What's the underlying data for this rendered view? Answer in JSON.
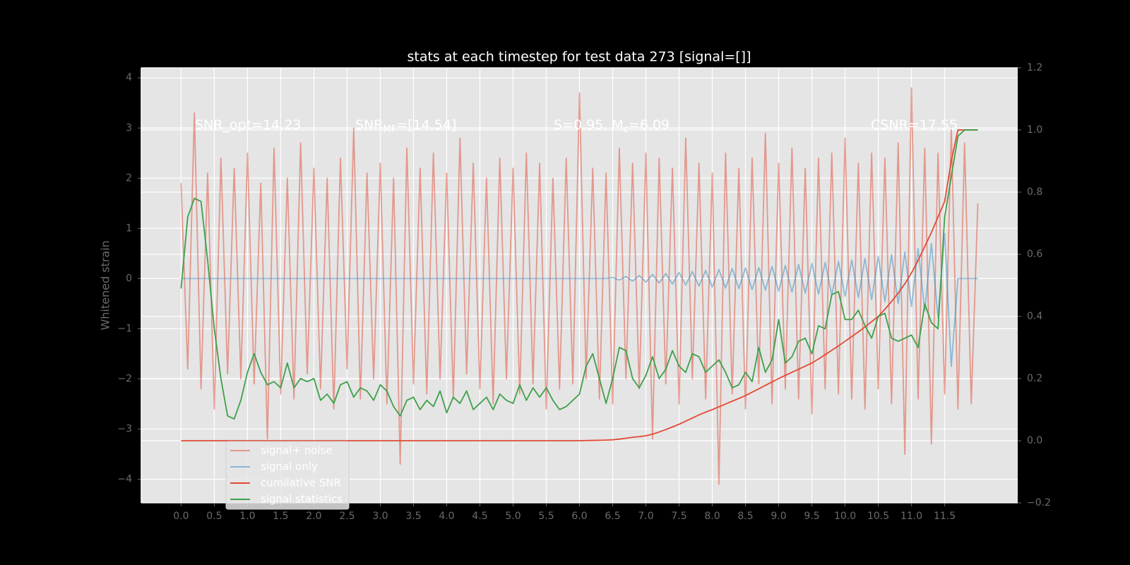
{
  "chart_data": {
    "type": "line",
    "title": "stats at each timestep for test data 273 [signal=[]]",
    "ylabel": "Whitened strain",
    "grid": true,
    "legend": "lower left",
    "annotations": [
      [
        "SNR_opt=14.23"
      ],
      [
        "SNR",
        "MF",
        "=[14.54]"
      ],
      [
        "S=0.95,  M",
        "c",
        "=6.09"
      ],
      [
        "CSNR=17.55"
      ]
    ],
    "xlim": [
      -0.6,
      12.6
    ],
    "ylim": [
      -4.47,
      4.2
    ],
    "y2lim": [
      -0.2,
      1.2
    ],
    "xticks": [
      {
        "value": 0,
        "label": "0.0"
      },
      0.5,
      {
        "value": 1,
        "label": "1.0"
      },
      1.5,
      {
        "value": 2,
        "label": "2.0"
      },
      2.5,
      {
        "value": 3,
        "label": "3.0"
      },
      3.5,
      {
        "value": 4,
        "label": "4.0"
      },
      4.5,
      {
        "value": 5,
        "label": "5.0"
      },
      5.5,
      {
        "value": 6,
        "label": "6.0"
      },
      6.5,
      {
        "value": 7,
        "label": "7.0"
      },
      7.5,
      {
        "value": 8,
        "label": "8.0"
      },
      8.5,
      {
        "value": 9,
        "label": "9.0"
      },
      9.5,
      {
        "value": 10,
        "label": "10.0"
      },
      10.5,
      {
        "value": 11,
        "label": "11.0"
      },
      11.5
    ],
    "yticks": [
      {
        "value": -4,
        "label": "−4"
      },
      {
        "value": -3,
        "label": "−3"
      },
      {
        "value": -2,
        "label": "−2"
      },
      {
        "value": -1,
        "label": "−1"
      },
      0,
      1,
      2,
      3,
      4
    ],
    "y2ticks": [
      {
        "value": -0.2,
        "label": "−0.2"
      },
      {
        "value": 0,
        "label": "0.0"
      },
      0.2,
      0.4,
      0.6,
      0.8,
      {
        "value": 1,
        "label": "1.0"
      },
      1.2
    ],
    "x": [
      0.0,
      0.1,
      0.2,
      0.3,
      0.4,
      0.5,
      0.6,
      0.7,
      0.8,
      0.9,
      1.0,
      1.1,
      1.2,
      1.3,
      1.4,
      1.5,
      1.6,
      1.7,
      1.8,
      1.9,
      2.0,
      2.1,
      2.2,
      2.3,
      2.4,
      2.5,
      2.6,
      2.7,
      2.8,
      2.9,
      3.0,
      3.1,
      3.2,
      3.3,
      3.4,
      3.5,
      3.6,
      3.7,
      3.8,
      3.9,
      4.0,
      4.1,
      4.2,
      4.3,
      4.4,
      4.5,
      4.6,
      4.7,
      4.8,
      4.9,
      5.0,
      5.1,
      5.2,
      5.3,
      5.4,
      5.5,
      5.6,
      5.7,
      5.8,
      5.9,
      6.0,
      6.1,
      6.2,
      6.3,
      6.4,
      6.5,
      6.6,
      6.7,
      6.8,
      6.9,
      7.0,
      7.1,
      7.2,
      7.3,
      7.4,
      7.5,
      7.6,
      7.7,
      7.8,
      7.9,
      8.0,
      8.1,
      8.2,
      8.3,
      8.4,
      8.5,
      8.6,
      8.7,
      8.8,
      8.9,
      9.0,
      9.1,
      9.2,
      9.3,
      9.4,
      9.5,
      9.6,
      9.7,
      9.8,
      9.9,
      10.0,
      10.1,
      10.2,
      10.3,
      10.4,
      10.5,
      10.6,
      10.7,
      10.8,
      10.9,
      11.0,
      11.1,
      11.2,
      11.3,
      11.4,
      11.5,
      11.6,
      11.7,
      11.8,
      11.9,
      12.0
    ],
    "series": [
      {
        "name": "signal+ noise",
        "color": "#E24A33",
        "opacity": 0.5,
        "axis": "y",
        "values": [
          1.9,
          -1.8,
          3.3,
          -2.2,
          2.1,
          -2.6,
          2.4,
          -1.9,
          2.2,
          -2.0,
          2.5,
          -2.1,
          1.9,
          -3.2,
          2.6,
          -2.3,
          2.0,
          -2.4,
          2.7,
          -1.9,
          2.2,
          -2.2,
          2.0,
          -2.6,
          2.4,
          -1.8,
          3.0,
          -2.4,
          2.1,
          -2.0,
          2.3,
          -2.5,
          2.0,
          -3.7,
          2.6,
          -2.1,
          2.2,
          -2.3,
          2.5,
          -2.0,
          2.1,
          -2.4,
          2.8,
          -1.9,
          2.3,
          -2.2,
          2.0,
          -2.5,
          2.4,
          -2.0,
          2.2,
          -2.3,
          2.5,
          -2.1,
          2.3,
          -2.6,
          2.0,
          -2.2,
          2.4,
          -2.1,
          3.7,
          -2.0,
          2.2,
          -2.4,
          2.1,
          -2.5,
          2.6,
          -2.0,
          2.3,
          -2.2,
          2.5,
          -3.2,
          2.4,
          -2.1,
          2.2,
          -2.5,
          2.8,
          -2.0,
          2.3,
          -2.4,
          2.1,
          -4.1,
          2.5,
          -2.3,
          2.2,
          -2.6,
          2.4,
          -2.1,
          2.9,
          -2.5,
          2.3,
          -2.2,
          2.6,
          -2.4,
          2.2,
          -2.7,
          2.4,
          -2.2,
          2.5,
          -2.3,
          2.8,
          -2.4,
          2.3,
          -2.6,
          2.5,
          -2.2,
          2.4,
          -2.5,
          2.7,
          -3.5,
          3.8,
          -2.4,
          2.6,
          -3.3,
          2.5,
          -2.3,
          3.0,
          -2.6,
          2.7,
          -2.5,
          1.5
        ]
      },
      {
        "name": "signal only",
        "color": "#348ABD",
        "opacity": 0.5,
        "axis": "y",
        "values": [
          0,
          0,
          0,
          0,
          0,
          0,
          0,
          0,
          0,
          0,
          0,
          0,
          0,
          0,
          0,
          0,
          0,
          0,
          0,
          0,
          0,
          0,
          0,
          0,
          0,
          0,
          0,
          0,
          0,
          0,
          0,
          0,
          0,
          0,
          0,
          0,
          0,
          0,
          0,
          0,
          0,
          0,
          0,
          0,
          0,
          0,
          0,
          0,
          0,
          0,
          0,
          0,
          0,
          0,
          0,
          0,
          0,
          0,
          0,
          0,
          0,
          0,
          0,
          0,
          0,
          0.02,
          -0.03,
          0.04,
          -0.05,
          0.06,
          -0.07,
          0.08,
          -0.09,
          0.1,
          -0.11,
          0.12,
          -0.13,
          0.14,
          -0.15,
          0.16,
          -0.17,
          0.18,
          -0.19,
          0.2,
          -0.2,
          0.21,
          -0.22,
          0.22,
          -0.23,
          0.24,
          -0.25,
          0.26,
          -0.27,
          0.28,
          -0.29,
          0.3,
          -0.31,
          0.32,
          -0.33,
          0.34,
          -0.35,
          0.37,
          -0.38,
          0.4,
          -0.42,
          0.44,
          -0.46,
          0.48,
          -0.5,
          0.53,
          -0.56,
          0.6,
          -0.64,
          0.7,
          -0.78,
          0.9,
          -1.75,
          0,
          0,
          0,
          0
        ]
      },
      {
        "name": "cumilative SNR",
        "color": "#E24A33",
        "opacity": 1,
        "axis": "y2",
        "values": [
          0,
          0,
          0,
          0,
          0,
          0,
          0,
          0,
          0,
          0,
          0,
          0,
          0,
          0,
          0,
          0,
          0,
          0,
          0,
          0,
          0,
          0,
          0,
          0,
          0,
          0,
          0,
          0,
          0,
          0,
          0,
          0,
          0,
          0,
          0,
          0,
          0,
          0,
          0,
          0,
          0,
          0,
          0,
          0,
          0,
          0,
          0,
          0,
          0,
          0,
          0,
          0,
          0,
          0,
          0,
          0,
          0,
          0,
          0,
          0,
          0,
          0.0005,
          0.001,
          0.0015,
          0.002,
          0.003,
          0.005,
          0.008,
          0.011,
          0.013,
          0.016,
          0.021,
          0.028,
          0.036,
          0.044,
          0.053,
          0.063,
          0.073,
          0.083,
          0.092,
          0.1,
          0.109,
          0.118,
          0.127,
          0.136,
          0.145,
          0.156,
          0.167,
          0.178,
          0.189,
          0.2,
          0.21,
          0.22,
          0.23,
          0.24,
          0.25,
          0.263,
          0.277,
          0.291,
          0.305,
          0.32,
          0.335,
          0.35,
          0.366,
          0.383,
          0.4,
          0.423,
          0.448,
          0.475,
          0.505,
          0.54,
          0.58,
          0.625,
          0.67,
          0.72,
          0.77,
          0.9,
          1.0,
          1.0,
          1.0,
          1.0
        ]
      },
      {
        "name": "signal statistics",
        "color": "#3ea04a",
        "opacity": 1,
        "axis": "y2",
        "values": [
          0.49,
          0.72,
          0.78,
          0.77,
          0.58,
          0.36,
          0.2,
          0.08,
          0.07,
          0.13,
          0.22,
          0.28,
          0.22,
          0.18,
          0.19,
          0.17,
          0.25,
          0.17,
          0.2,
          0.19,
          0.2,
          0.13,
          0.15,
          0.12,
          0.18,
          0.19,
          0.14,
          0.17,
          0.16,
          0.13,
          0.18,
          0.16,
          0.11,
          0.08,
          0.13,
          0.14,
          0.1,
          0.13,
          0.11,
          0.16,
          0.09,
          0.14,
          0.12,
          0.16,
          0.1,
          0.12,
          0.14,
          0.1,
          0.15,
          0.13,
          0.12,
          0.18,
          0.13,
          0.17,
          0.14,
          0.17,
          0.13,
          0.1,
          0.11,
          0.13,
          0.15,
          0.24,
          0.28,
          0.2,
          0.12,
          0.2,
          0.3,
          0.29,
          0.2,
          0.17,
          0.21,
          0.27,
          0.2,
          0.23,
          0.29,
          0.24,
          0.22,
          0.28,
          0.27,
          0.22,
          0.24,
          0.26,
          0.22,
          0.17,
          0.18,
          0.22,
          0.19,
          0.3,
          0.22,
          0.26,
          0.39,
          0.25,
          0.27,
          0.32,
          0.33,
          0.28,
          0.37,
          0.36,
          0.47,
          0.48,
          0.39,
          0.39,
          0.42,
          0.37,
          0.33,
          0.4,
          0.41,
          0.33,
          0.32,
          0.33,
          0.34,
          0.3,
          0.44,
          0.38,
          0.36,
          0.72,
          0.85,
          0.98,
          1.0,
          1.0,
          1.0
        ]
      }
    ]
  }
}
